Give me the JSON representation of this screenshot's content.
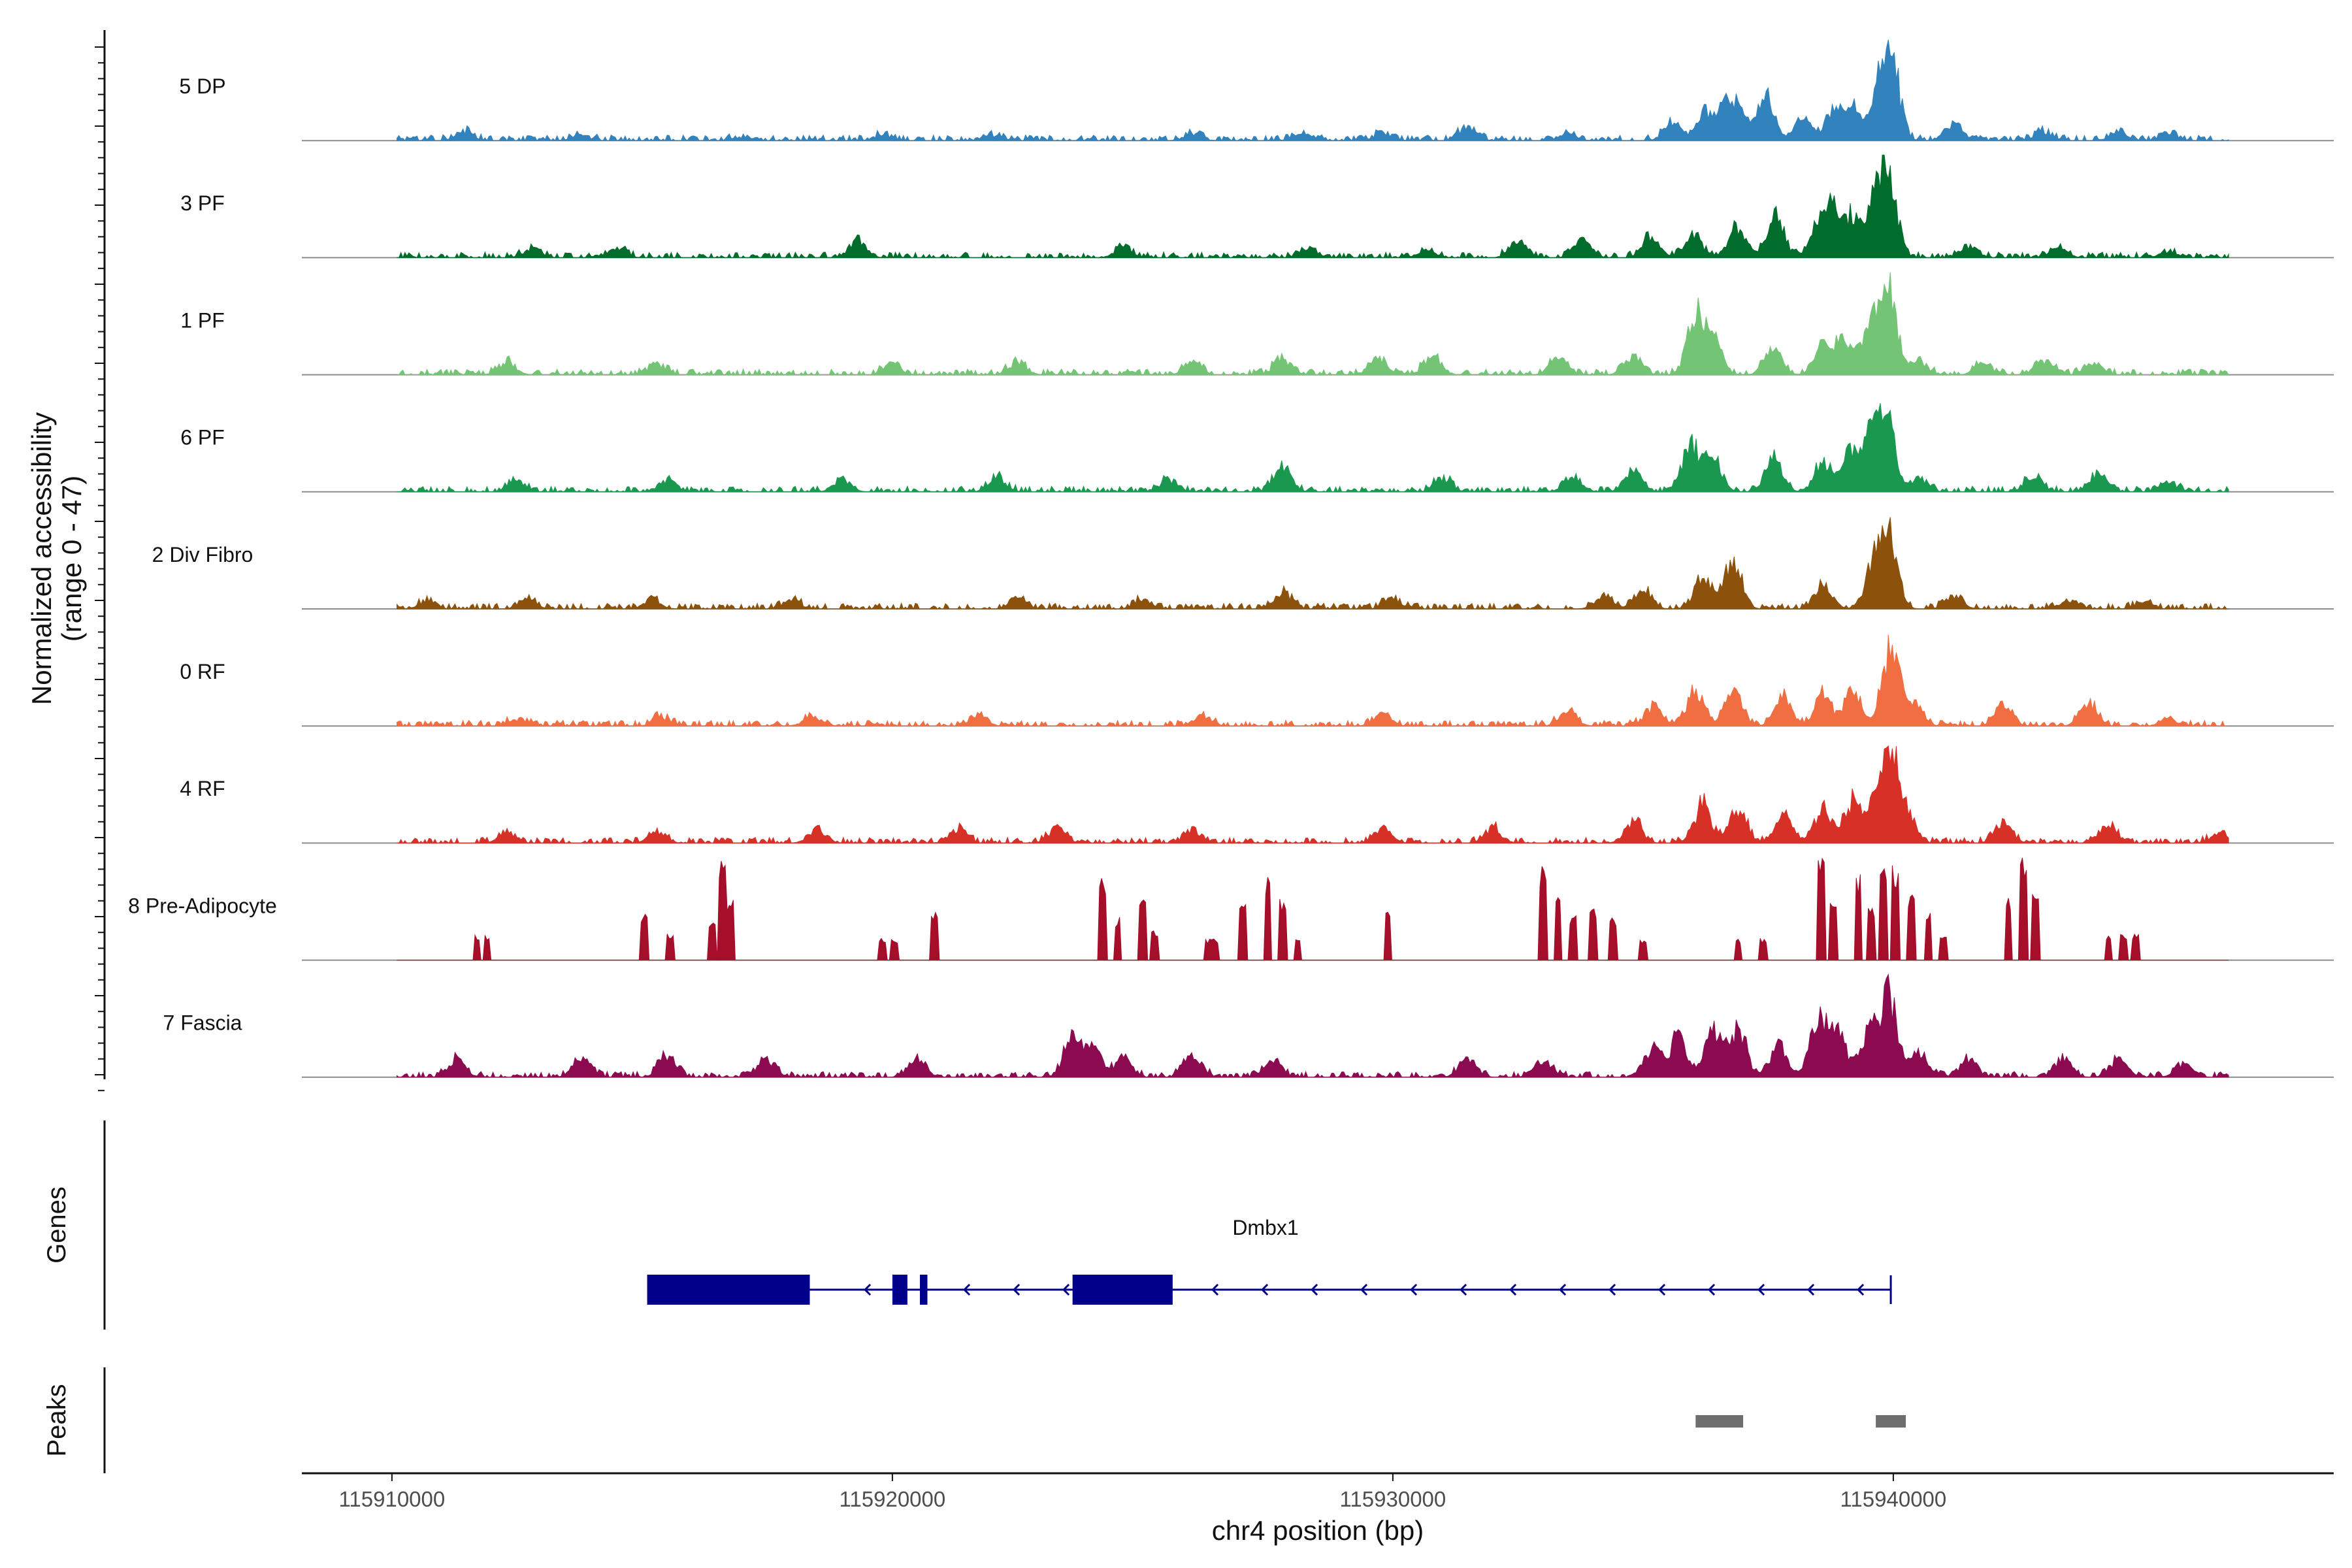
{
  "chart_data": {
    "type": "coverage",
    "y_title_line1": "Normalized accessibility",
    "y_title_line2": "(range 0 - 47)",
    "y_range": [
      0,
      47
    ],
    "x_title": "chr4 position (bp)",
    "x_range": [
      115908200,
      115948800
    ],
    "x_ticks": [
      115910000,
      115920000,
      115930000,
      115940000
    ],
    "x_tick_labels": [
      "115910000",
      "115920000",
      "115930000",
      "115940000"
    ],
    "genes_label": "Genes",
    "peaks_label": "Peaks",
    "tracks": [
      {
        "name": "5 DP",
        "color": "#3182bd",
        "style": "dense",
        "peaks": [
          [
            115937450,
            25
          ],
          [
            115939700,
            22
          ],
          [
            115939950,
            47
          ],
          [
            115936250,
            16
          ],
          [
            115936700,
            20
          ],
          [
            115935600,
            10
          ],
          [
            115936950,
            12
          ],
          [
            115941200,
            10
          ],
          [
            115938800,
            16
          ],
          [
            115939200,
            18
          ],
          [
            115938200,
            12
          ],
          [
            115931500,
            8
          ],
          [
            115928200,
            5
          ],
          [
            115929800,
            4
          ],
          [
            115911450,
            5
          ],
          [
            115913750,
            3
          ],
          [
            115917000,
            2
          ],
          [
            115919800,
            3
          ],
          [
            115922000,
            3
          ],
          [
            115933500,
            4
          ],
          [
            115943000,
            5
          ],
          [
            115944500,
            4
          ],
          [
            115926000,
            4
          ],
          [
            115945500,
            3
          ]
        ]
      },
      {
        "name": "3 PF",
        "color": "#006d2c",
        "style": "dense",
        "peaks": [
          [
            115939900,
            47
          ],
          [
            115939600,
            28
          ],
          [
            115937650,
            25
          ],
          [
            115936900,
            18
          ],
          [
            115936000,
            14
          ],
          [
            115938500,
            18
          ],
          [
            115938800,
            22
          ],
          [
            115939150,
            20
          ],
          [
            115935150,
            12
          ],
          [
            115933800,
            10
          ],
          [
            115932500,
            9
          ],
          [
            115919300,
            9
          ],
          [
            115912800,
            5
          ],
          [
            115914500,
            5
          ],
          [
            115924600,
            5
          ],
          [
            115928300,
            5
          ],
          [
            115930700,
            4
          ],
          [
            115941500,
            6
          ],
          [
            115943300,
            5
          ],
          [
            115945500,
            3
          ]
        ]
      },
      {
        "name": "1 PF",
        "color": "#74c476",
        "style": "dense",
        "peaks": [
          [
            115939900,
            47
          ],
          [
            115939500,
            27
          ],
          [
            115936050,
            34
          ],
          [
            115936400,
            20
          ],
          [
            115937600,
            15
          ],
          [
            115938600,
            16
          ],
          [
            115939000,
            18
          ],
          [
            115940500,
            8
          ],
          [
            115934800,
            10
          ],
          [
            115933300,
            9
          ],
          [
            115930800,
            11
          ],
          [
            115929700,
            8
          ],
          [
            115927800,
            9
          ],
          [
            115926000,
            7
          ],
          [
            115922500,
            7
          ],
          [
            115920000,
            6
          ],
          [
            115915300,
            6
          ],
          [
            115912300,
            7
          ],
          [
            115944000,
            7
          ],
          [
            115943000,
            8
          ],
          [
            115941800,
            6
          ]
        ]
      },
      {
        "name": "6 PF",
        "color": "#1a9850",
        "style": "dense",
        "peaks": [
          [
            115939850,
            47
          ],
          [
            115939500,
            30
          ],
          [
            115935950,
            26
          ],
          [
            115936400,
            20
          ],
          [
            115937600,
            18
          ],
          [
            115938600,
            17
          ],
          [
            115939100,
            20
          ],
          [
            115940500,
            8
          ],
          [
            115934800,
            12
          ],
          [
            115933600,
            9
          ],
          [
            115931000,
            8
          ],
          [
            115927800,
            14
          ],
          [
            115925500,
            6
          ],
          [
            115922100,
            8
          ],
          [
            115919000,
            7
          ],
          [
            115915500,
            7
          ],
          [
            115912500,
            6
          ],
          [
            115942800,
            8
          ],
          [
            115944100,
            10
          ],
          [
            115945500,
            5
          ]
        ]
      },
      {
        "name": "2 Div Fibro",
        "color": "#8c510a",
        "style": "dense",
        "peaks": [
          [
            115939900,
            47
          ],
          [
            115939600,
            22
          ],
          [
            115936800,
            30
          ],
          [
            115936200,
            18
          ],
          [
            115938600,
            15
          ],
          [
            115935000,
            10
          ],
          [
            115934200,
            7
          ],
          [
            115927800,
            9
          ],
          [
            115930000,
            6
          ],
          [
            115925000,
            5
          ],
          [
            115922500,
            5
          ],
          [
            115918000,
            5
          ],
          [
            115915200,
            5
          ],
          [
            115912700,
            5
          ],
          [
            115910700,
            4
          ],
          [
            115941200,
            7
          ],
          [
            115943500,
            5
          ],
          [
            115945000,
            4
          ]
        ]
      },
      {
        "name": "0 RF",
        "color": "#f16e43",
        "style": "dense",
        "peaks": [
          [
            115939950,
            47
          ],
          [
            115936050,
            20
          ],
          [
            115936800,
            20
          ],
          [
            115937800,
            15
          ],
          [
            115938600,
            17
          ],
          [
            115939200,
            21
          ],
          [
            115940400,
            12
          ],
          [
            115942200,
            12
          ],
          [
            115943900,
            12
          ],
          [
            115935200,
            10
          ],
          [
            115933500,
            8
          ],
          [
            115929800,
            7
          ],
          [
            115926200,
            6
          ],
          [
            115921700,
            6
          ],
          [
            115918400,
            6
          ],
          [
            115915400,
            5
          ],
          [
            115912500,
            4
          ],
          [
            115945500,
            4
          ]
        ]
      },
      {
        "name": "4 RF",
        "color": "#d73027",
        "style": "dense",
        "peaks": [
          [
            115939950,
            47
          ],
          [
            115939700,
            24
          ],
          [
            115936200,
            22
          ],
          [
            115936900,
            18
          ],
          [
            115937800,
            15
          ],
          [
            115938600,
            20
          ],
          [
            115939200,
            24
          ],
          [
            115940300,
            14
          ],
          [
            115942200,
            12
          ],
          [
            115944300,
            10
          ],
          [
            115934800,
            12
          ],
          [
            115932000,
            8
          ],
          [
            115929800,
            8
          ],
          [
            115926000,
            8
          ],
          [
            115923300,
            9
          ],
          [
            115921300,
            8
          ],
          [
            115918500,
            8
          ],
          [
            115915300,
            7
          ],
          [
            115912300,
            6
          ],
          [
            115946500,
            5
          ]
        ]
      },
      {
        "name": "8 Pre-Adipocyte",
        "color": "#a50f2a",
        "style": "sparse",
        "peaks": [
          [
            115911700,
            12
          ],
          [
            115911900,
            12
          ],
          [
            115915050,
            22
          ],
          [
            115915550,
            12
          ],
          [
            115916400,
            20
          ],
          [
            115916600,
            47
          ],
          [
            115916750,
            30
          ],
          [
            115919800,
            10
          ],
          [
            115920050,
            10
          ],
          [
            115920850,
            24
          ],
          [
            115924200,
            40
          ],
          [
            115924500,
            20
          ],
          [
            115925000,
            28
          ],
          [
            115925250,
            14
          ],
          [
            115926300,
            10
          ],
          [
            115926450,
            10
          ],
          [
            115927000,
            26
          ],
          [
            115927500,
            40
          ],
          [
            115927800,
            28
          ],
          [
            115928100,
            10
          ],
          [
            115929900,
            26
          ],
          [
            115933000,
            44
          ],
          [
            115933300,
            30
          ],
          [
            115933600,
            22
          ],
          [
            115934000,
            24
          ],
          [
            115934400,
            20
          ],
          [
            115935000,
            10
          ],
          [
            115936900,
            10
          ],
          [
            115937400,
            10
          ],
          [
            115938550,
            47
          ],
          [
            115938800,
            30
          ],
          [
            115939300,
            40
          ],
          [
            115939550,
            24
          ],
          [
            115939800,
            47
          ],
          [
            115940050,
            44
          ],
          [
            115940350,
            30
          ],
          [
            115940700,
            22
          ],
          [
            115941000,
            12
          ],
          [
            115942300,
            30
          ],
          [
            115942600,
            47
          ],
          [
            115942850,
            32
          ],
          [
            115944300,
            12
          ],
          [
            115944600,
            12
          ],
          [
            115944850,
            12
          ]
        ]
      },
      {
        "name": "7 Fascia",
        "color": "#8b0a50",
        "style": "dense",
        "peaks": [
          [
            115939900,
            47
          ],
          [
            115938500,
            32
          ],
          [
            115938900,
            24
          ],
          [
            115936400,
            28
          ],
          [
            115936900,
            26
          ],
          [
            115935700,
            22
          ],
          [
            115935200,
            16
          ],
          [
            115937700,
            18
          ],
          [
            115939500,
            24
          ],
          [
            115940500,
            14
          ],
          [
            115941500,
            10
          ],
          [
            115943400,
            10
          ],
          [
            115944500,
            10
          ],
          [
            115945800,
            8
          ],
          [
            115923600,
            24
          ],
          [
            115924000,
            16
          ],
          [
            115924600,
            10
          ],
          [
            115927600,
            10
          ],
          [
            115926000,
            12
          ],
          [
            115920500,
            10
          ],
          [
            115917500,
            10
          ],
          [
            115915500,
            12
          ],
          [
            115913800,
            10
          ],
          [
            115911300,
            10
          ],
          [
            115933000,
            10
          ],
          [
            115931500,
            10
          ]
        ]
      }
    ],
    "gene": {
      "name": "Dmbx1",
      "strand": "-",
      "start": 115915100,
      "end": 115939950,
      "exons": [
        [
          115915100,
          115918350
        ],
        [
          115920000,
          115920300
        ],
        [
          115920550,
          115920700
        ],
        [
          115923600,
          115925600
        ]
      ]
    },
    "peak_regions": [
      [
        115936050,
        115937000
      ],
      [
        115939650,
        115940250
      ]
    ]
  },
  "colors": {
    "gene": "#00008b",
    "peak_region": "#6e6e6e",
    "baseline": "#8c8c8c",
    "axis": "#111111"
  }
}
